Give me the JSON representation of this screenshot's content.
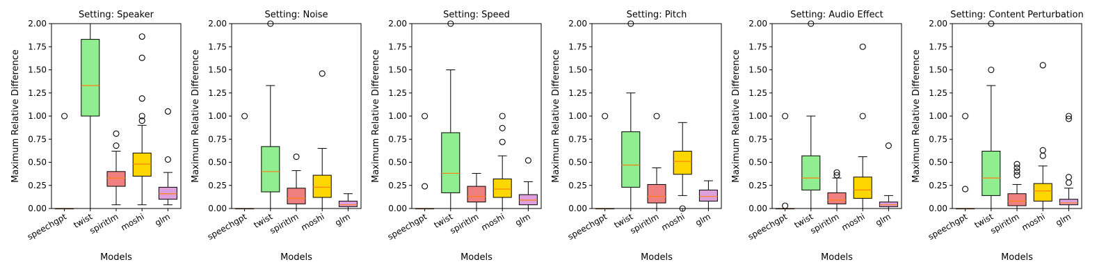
{
  "chart_data": [
    {
      "type": "boxplot",
      "title": "Setting: Speaker",
      "xlabel": "Models",
      "ylabel": "Maximum Relative Difference",
      "ylim": [
        0,
        2
      ],
      "yticks": [
        "0.00",
        "0.25",
        "0.50",
        "0.75",
        "1.00",
        "1.25",
        "1.50",
        "1.75",
        "2.00"
      ],
      "categories": [
        "speechgpt",
        "twist",
        "spiritlm",
        "moshi",
        "glm"
      ],
      "boxes": [
        {
          "min": 0,
          "q1": 0,
          "median": 0,
          "q3": 0,
          "max": 0,
          "outliers": [
            1.0
          ]
        },
        {
          "min": 0,
          "q1": 1.0,
          "median": 1.33,
          "q3": 1.83,
          "max": 2.0,
          "outliers": []
        },
        {
          "min": 0.04,
          "q1": 0.24,
          "median": 0.33,
          "q3": 0.4,
          "max": 0.62,
          "outliers": [
            0.68,
            0.81
          ]
        },
        {
          "min": 0.04,
          "q1": 0.35,
          "median": 0.48,
          "q3": 0.6,
          "max": 0.9,
          "outliers": [
            0.95,
            1.0,
            1.19,
            1.63,
            1.86
          ]
        },
        {
          "min": 0.04,
          "q1": 0.1,
          "median": 0.16,
          "q3": 0.23,
          "max": 0.39,
          "outliers": [
            0.53,
            1.05
          ]
        }
      ]
    },
    {
      "type": "boxplot",
      "title": "Setting: Noise",
      "xlabel": "Models",
      "ylabel": "Maximum Relative Difference",
      "ylim": [
        0,
        2
      ],
      "yticks": [
        "0.00",
        "0.25",
        "0.50",
        "0.75",
        "1.00",
        "1.25",
        "1.50",
        "1.75",
        "2.00"
      ],
      "categories": [
        "speechgpt",
        "twist",
        "spiritlm",
        "moshi",
        "glm"
      ],
      "boxes": [
        {
          "min": 0,
          "q1": 0,
          "median": 0,
          "q3": 0,
          "max": 0,
          "outliers": [
            1.0
          ]
        },
        {
          "min": 0,
          "q1": 0.18,
          "median": 0.4,
          "q3": 0.67,
          "max": 1.33,
          "outliers": [
            2.0
          ]
        },
        {
          "min": 0,
          "q1": 0.05,
          "median": 0.11,
          "q3": 0.22,
          "max": 0.41,
          "outliers": [
            0.56
          ]
        },
        {
          "min": 0,
          "q1": 0.12,
          "median": 0.23,
          "q3": 0.36,
          "max": 0.65,
          "outliers": [
            1.46
          ]
        },
        {
          "min": 0,
          "q1": 0.02,
          "median": 0.04,
          "q3": 0.08,
          "max": 0.16,
          "outliers": []
        }
      ]
    },
    {
      "type": "boxplot",
      "title": "Setting: Speed",
      "xlabel": "Models",
      "ylabel": "Maximum Relative Difference",
      "ylim": [
        0,
        2
      ],
      "yticks": [
        "0.00",
        "0.25",
        "0.50",
        "0.75",
        "1.00",
        "1.25",
        "1.50",
        "1.75",
        "2.00"
      ],
      "categories": [
        "speechgpt",
        "twist",
        "spiritlm",
        "moshi",
        "glm"
      ],
      "boxes": [
        {
          "min": 0,
          "q1": 0,
          "median": 0,
          "q3": 0,
          "max": 0,
          "outliers": [
            0.24,
            1.0
          ]
        },
        {
          "min": 0,
          "q1": 0.17,
          "median": 0.38,
          "q3": 0.82,
          "max": 1.5,
          "outliers": [
            2.0
          ]
        },
        {
          "min": 0,
          "q1": 0.07,
          "median": 0.13,
          "q3": 0.24,
          "max": 0.38,
          "outliers": []
        },
        {
          "min": 0,
          "q1": 0.12,
          "median": 0.21,
          "q3": 0.32,
          "max": 0.57,
          "outliers": [
            0.72,
            0.87,
            1.0
          ]
        },
        {
          "min": 0,
          "q1": 0.04,
          "median": 0.09,
          "q3": 0.15,
          "max": 0.29,
          "outliers": [
            0.52
          ]
        }
      ]
    },
    {
      "type": "boxplot",
      "title": "Setting: Pitch",
      "xlabel": "Models",
      "ylabel": "Maximum Relative Difference",
      "ylim": [
        0,
        2
      ],
      "yticks": [
        "0.00",
        "0.25",
        "0.50",
        "0.75",
        "1.00",
        "1.25",
        "1.50",
        "1.75",
        "2.00"
      ],
      "categories": [
        "speechgpt",
        "twist",
        "spiritlm",
        "moshi",
        "glm"
      ],
      "boxes": [
        {
          "min": 0,
          "q1": 0,
          "median": 0,
          "q3": 0,
          "max": 0,
          "outliers": [
            1.0
          ]
        },
        {
          "min": 0,
          "q1": 0.23,
          "median": 0.47,
          "q3": 0.83,
          "max": 1.25,
          "outliers": [
            2.0
          ]
        },
        {
          "min": 0,
          "q1": 0.06,
          "median": 0.13,
          "q3": 0.26,
          "max": 0.44,
          "outliers": [
            1.0
          ]
        },
        {
          "min": 0.14,
          "q1": 0.37,
          "median": 0.51,
          "q3": 0.62,
          "max": 0.93,
          "outliers": [
            0.0
          ]
        },
        {
          "min": 0,
          "q1": 0.08,
          "median": 0.13,
          "q3": 0.2,
          "max": 0.3,
          "outliers": []
        }
      ]
    },
    {
      "type": "boxplot",
      "title": "Setting: Audio Effect",
      "xlabel": "Models",
      "ylabel": "Maximum Relative Difference",
      "ylim": [
        0,
        2
      ],
      "yticks": [
        "0.00",
        "0.25",
        "0.50",
        "0.75",
        "1.00",
        "1.25",
        "1.50",
        "1.75",
        "2.00"
      ],
      "categories": [
        "speechgpt",
        "twist",
        "spiritlm",
        "moshi",
        "glm"
      ],
      "boxes": [
        {
          "min": 0,
          "q1": 0,
          "median": 0,
          "q3": 0,
          "max": 0,
          "outliers": [
            0.03,
            1.0
          ]
        },
        {
          "min": 0,
          "q1": 0.2,
          "median": 0.33,
          "q3": 0.57,
          "max": 1.0,
          "outliers": [
            2.0
          ]
        },
        {
          "min": 0,
          "q1": 0.05,
          "median": 0.09,
          "q3": 0.17,
          "max": 0.33,
          "outliers": [
            0.36,
            0.39
          ]
        },
        {
          "min": 0,
          "q1": 0.11,
          "median": 0.2,
          "q3": 0.34,
          "max": 0.56,
          "outliers": [
            1.0,
            1.75
          ]
        },
        {
          "min": 0,
          "q1": 0.02,
          "median": 0.04,
          "q3": 0.07,
          "max": 0.14,
          "outliers": [
            0.68
          ]
        }
      ]
    },
    {
      "type": "boxplot",
      "title": "Setting: Content Perturbation",
      "xlabel": "Models",
      "ylabel": "Maximum Relative Difference",
      "ylim": [
        0,
        2
      ],
      "yticks": [
        "0.00",
        "0.25",
        "0.50",
        "0.75",
        "1.00",
        "1.25",
        "1.50",
        "1.75",
        "2.00"
      ],
      "categories": [
        "speechgpt",
        "twist",
        "spiritlm",
        "moshi",
        "glm"
      ],
      "boxes": [
        {
          "min": 0,
          "q1": 0,
          "median": 0,
          "q3": 0,
          "max": 0,
          "outliers": [
            0.21,
            1.0
          ]
        },
        {
          "min": 0,
          "q1": 0.14,
          "median": 0.33,
          "q3": 0.62,
          "max": 1.33,
          "outliers": [
            1.5,
            2.0
          ]
        },
        {
          "min": 0,
          "q1": 0.03,
          "median": 0.08,
          "q3": 0.16,
          "max": 0.26,
          "outliers": [
            0.36,
            0.4,
            0.44,
            0.48
          ]
        },
        {
          "min": 0,
          "q1": 0.08,
          "median": 0.19,
          "q3": 0.27,
          "max": 0.46,
          "outliers": [
            0.57,
            0.63,
            1.55
          ]
        },
        {
          "min": 0,
          "q1": 0.04,
          "median": 0.06,
          "q3": 0.1,
          "max": 0.22,
          "outliers": [
            0.28,
            0.34,
            0.97,
            1.0
          ]
        }
      ]
    }
  ],
  "colors": {
    "speechgpt": "#ffa500",
    "twist": "#90ee90",
    "spiritlm": "#f08080",
    "moshi": "#ffd700",
    "glm": "#dda0dd",
    "median": "#ff7f0e"
  }
}
